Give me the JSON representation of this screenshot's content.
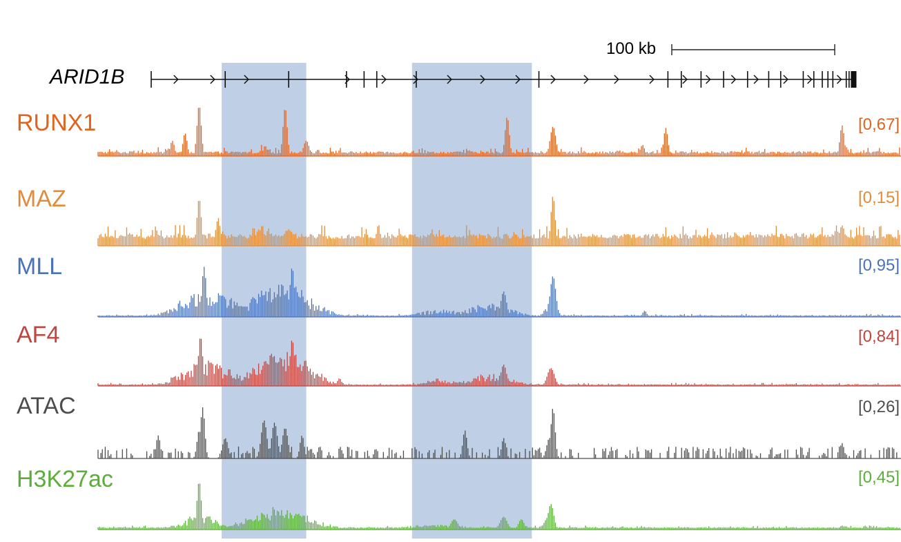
{
  "chart_data": {
    "type": "genome-browser-tracks",
    "scale_bar": {
      "label": "100 kb"
    },
    "gene": {
      "name": "ARID1B",
      "strand": "+",
      "exon_positions": [
        0,
        0.105,
        0.195,
        0.277,
        0.302,
        0.32,
        0.376,
        0.55,
        0.733,
        0.752,
        0.78,
        0.812,
        0.846,
        0.876,
        0.893,
        0.925,
        0.94,
        0.952,
        0.96,
        0.967,
        0.986,
        0.99,
        0.995,
        0.998
      ],
      "arrow_positions": [
        0.035,
        0.087,
        0.135,
        0.278,
        0.33,
        0.375,
        0.423,
        0.47,
        0.52,
        0.57,
        0.617,
        0.66,
        0.71,
        0.757,
        0.79,
        0.826,
        0.858,
        0.9,
        0.934,
        0.976
      ]
    },
    "highlight_regions": [
      {
        "start": 0.1,
        "end": 0.22
      },
      {
        "start": 0.37,
        "end": 0.54
      }
    ],
    "tracks": [
      {
        "name": "RUNX1",
        "range": "[0,67]",
        "color": "#E0631E",
        "baseline": 0.05,
        "noise": 0.12,
        "sparse": false,
        "peaks": [
          [
            0.068,
            1.0,
            0.003
          ],
          [
            0.048,
            0.45,
            0.003
          ],
          [
            0.03,
            0.3,
            0.003
          ],
          [
            0.19,
            0.95,
            0.003
          ],
          [
            0.16,
            0.25,
            0.008
          ],
          [
            0.22,
            0.3,
            0.004
          ],
          [
            0.505,
            0.77,
            0.003
          ],
          [
            0.57,
            0.58,
            0.004
          ],
          [
            0.73,
            0.55,
            0.003
          ],
          [
            0.697,
            0.22,
            0.003
          ],
          [
            0.98,
            0.6,
            0.003
          ],
          [
            0.985,
            0.18,
            0.004
          ]
        ]
      },
      {
        "name": "MAZ",
        "range": "[0,15]",
        "color": "#E08C3A",
        "baseline": 0.14,
        "noise": 0.28,
        "sparse": false,
        "peaks": [
          [
            0.068,
            0.93,
            0.003
          ],
          [
            0.095,
            0.55,
            0.003
          ],
          [
            0.16,
            0.5,
            0.01
          ],
          [
            0.2,
            0.45,
            0.012
          ],
          [
            0.57,
            0.98,
            0.003
          ],
          [
            0.98,
            0.4,
            0.004
          ]
        ]
      },
      {
        "name": "MLL",
        "range": "[0,95]",
        "color": "#4A72B8",
        "baseline": 0.02,
        "noise": 0.04,
        "sparse": false,
        "peaks": [
          [
            0.08,
            0.6,
            0.035
          ],
          [
            0.19,
            0.7,
            0.035
          ],
          [
            0.165,
            0.55,
            0.025
          ],
          [
            0.2,
            0.98,
            0.003
          ],
          [
            0.075,
            0.98,
            0.003
          ],
          [
            0.41,
            0.15,
            0.03
          ],
          [
            0.48,
            0.3,
            0.03
          ],
          [
            0.5,
            0.5,
            0.004
          ],
          [
            0.57,
            0.8,
            0.004
          ],
          [
            0.567,
            0.3,
            0.008
          ],
          [
            0.7,
            0.12,
            0.003
          ]
        ]
      },
      {
        "name": "AF4",
        "range": "[0,84]",
        "color": "#C0453F",
        "baseline": 0.02,
        "noise": 0.04,
        "sparse": false,
        "peaks": [
          [
            0.08,
            0.5,
            0.035
          ],
          [
            0.19,
            0.75,
            0.035
          ],
          [
            0.165,
            0.55,
            0.025
          ],
          [
            0.07,
            0.98,
            0.003
          ],
          [
            0.2,
            0.92,
            0.003
          ],
          [
            0.41,
            0.15,
            0.02
          ],
          [
            0.48,
            0.25,
            0.03
          ],
          [
            0.5,
            0.42,
            0.004
          ],
          [
            0.567,
            0.35,
            0.005
          ],
          [
            0.267,
            0.15,
            0.003
          ]
        ]
      },
      {
        "name": "ATAC",
        "range": "[0,26]",
        "color": "#4D4D4D",
        "baseline": 0.0,
        "noise": 0.55,
        "sparse": true,
        "peaks": [
          [
            0.073,
            1.0,
            0.003
          ],
          [
            0.068,
            0.55,
            0.003
          ],
          [
            0.01,
            0.45,
            0.003
          ],
          [
            0.105,
            0.4,
            0.004
          ],
          [
            0.16,
            0.75,
            0.004
          ],
          [
            0.175,
            0.7,
            0.004
          ],
          [
            0.19,
            0.6,
            0.004
          ],
          [
            0.214,
            0.45,
            0.003
          ],
          [
            0.445,
            0.55,
            0.003
          ],
          [
            0.5,
            0.4,
            0.003
          ],
          [
            0.57,
            0.99,
            0.003
          ],
          [
            0.565,
            0.4,
            0.004
          ],
          [
            0.98,
            0.3,
            0.003
          ]
        ]
      },
      {
        "name": "H3K27ac",
        "range": "[0,45]",
        "color": "#5BAE3A",
        "baseline": 0.03,
        "noise": 0.05,
        "sparse": false,
        "peaks": [
          [
            0.068,
            0.95,
            0.003
          ],
          [
            0.07,
            0.35,
            0.02
          ],
          [
            0.18,
            0.45,
            0.035
          ],
          [
            0.21,
            0.3,
            0.03
          ],
          [
            0.15,
            0.25,
            0.03
          ],
          [
            0.43,
            0.2,
            0.005
          ],
          [
            0.5,
            0.25,
            0.005
          ],
          [
            0.525,
            0.2,
            0.004
          ],
          [
            0.567,
            0.5,
            0.004
          ],
          [
            0.564,
            0.25,
            0.006
          ],
          [
            0.4,
            0.1,
            0.04
          ],
          [
            0.98,
            0.08,
            0.003
          ]
        ]
      }
    ]
  }
}
